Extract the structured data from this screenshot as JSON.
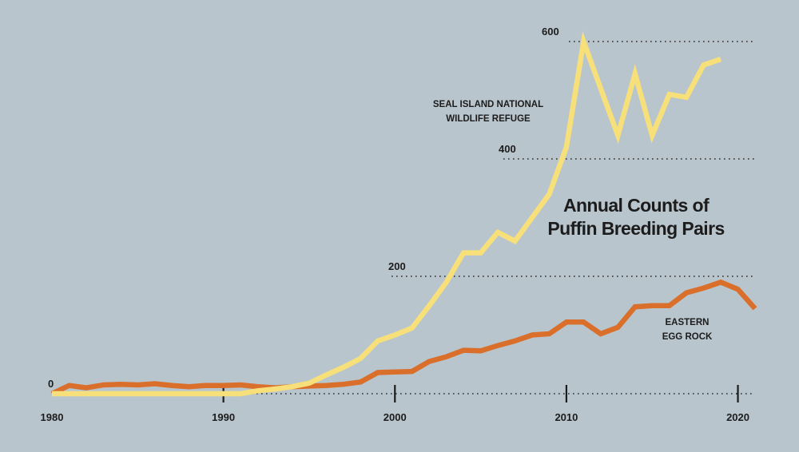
{
  "chart_data": {
    "type": "line",
    "title": "Annual Counts of Puffin Breeding Pairs",
    "title_lines": [
      "Annual Counts of",
      "Puffin Breeding Pairs"
    ],
    "xlabel": "",
    "ylabel": "",
    "xlim": [
      1980,
      2021
    ],
    "ylim": [
      0,
      600
    ],
    "x_ticks": [
      1980,
      1990,
      2000,
      2010,
      2020
    ],
    "y_ticks": [
      0,
      200,
      400,
      600
    ],
    "grid": true,
    "legend": "inline labels",
    "series": [
      {
        "name": "SEAL ISLAND NATIONAL WILDLIFE REFUGE",
        "label_lines": [
          "SEAL ISLAND NATIONAL",
          "WILDLIFE REFUGE"
        ],
        "color": "#f7e07a",
        "x": [
          1980,
          1981,
          1982,
          1983,
          1984,
          1985,
          1986,
          1987,
          1988,
          1989,
          1990,
          1991,
          1992,
          1993,
          1994,
          1995,
          1996,
          1997,
          1998,
          1999,
          2000,
          2001,
          2002,
          2003,
          2004,
          2005,
          2006,
          2007,
          2008,
          2009,
          2010,
          2011,
          2012,
          2013,
          2014,
          2015,
          2016,
          2017,
          2018,
          2019
        ],
        "values": [
          0,
          0,
          0,
          0,
          0,
          0,
          0,
          0,
          0,
          0,
          0,
          0,
          5,
          8,
          12,
          18,
          32,
          45,
          60,
          90,
          100,
          112,
          150,
          190,
          240,
          240,
          275,
          260,
          300,
          340,
          420,
          600,
          520,
          440,
          545,
          440,
          510,
          505,
          560,
          570
        ]
      },
      {
        "name": "EASTERN EGG ROCK",
        "label_lines": [
          "EASTERN",
          "EGG ROCK"
        ],
        "color": "#d96f2b",
        "x": [
          1980,
          1981,
          1982,
          1983,
          1984,
          1985,
          1986,
          1987,
          1988,
          1989,
          1990,
          1991,
          1992,
          1993,
          1994,
          1995,
          1996,
          1997,
          1998,
          1999,
          2000,
          2001,
          2002,
          2003,
          2004,
          2005,
          2006,
          2007,
          2008,
          2009,
          2010,
          2011,
          2012,
          2013,
          2014,
          2015,
          2016,
          2017,
          2018,
          2019,
          2020,
          2021
        ],
        "values": [
          0,
          14,
          10,
          15,
          16,
          15,
          17,
          14,
          12,
          14,
          14,
          15,
          12,
          10,
          12,
          13,
          14,
          16,
          20,
          36,
          37,
          38,
          55,
          63,
          74,
          73,
          82,
          90,
          100,
          102,
          122,
          122,
          102,
          113,
          148,
          150,
          150,
          172,
          180,
          190,
          178,
          145
        ]
      }
    ]
  }
}
